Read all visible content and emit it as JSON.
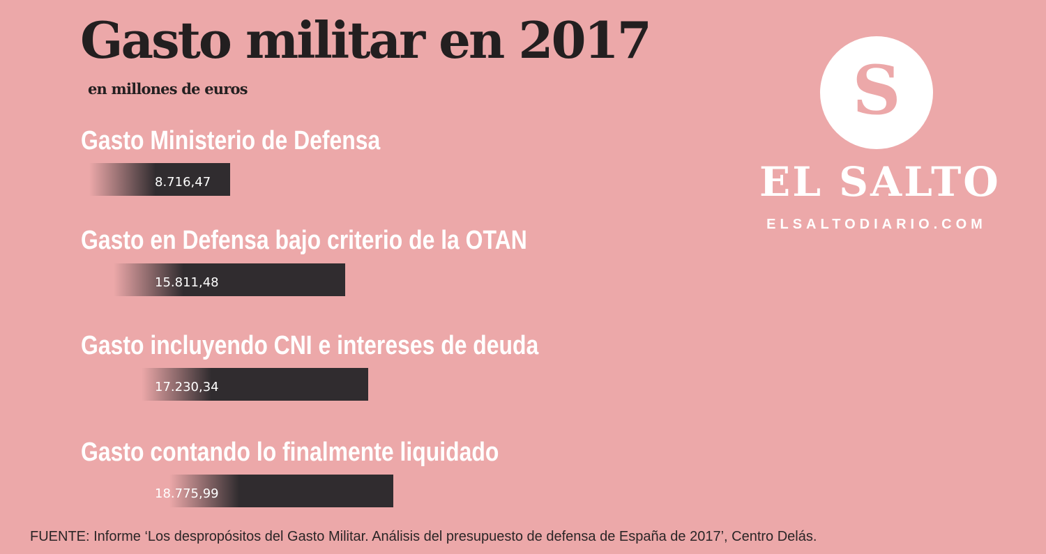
{
  "colors": {
    "background": "#eca8a9",
    "bar": "#302c2f",
    "title_text": "#231f20",
    "label_text": "#ffffff"
  },
  "chart_data": {
    "type": "bar",
    "orientation": "horizontal",
    "title": "Gasto militar en 2017",
    "subtitle": "en millones de euros",
    "categories": [
      "Gasto Ministerio de Defensa",
      "Gasto en Defensa bajo criterio de la OTAN",
      "Gasto incluyendo CNI e intereses de deuda",
      "Gasto contando lo finalmente liquidado"
    ],
    "values": [
      8716.47,
      15811.48,
      17230.34,
      18775.99
    ],
    "value_labels": [
      "8.716,47",
      "15.811,48",
      "17.230,34",
      "18.775,99"
    ],
    "xlim": [
      0,
      20000
    ],
    "grid": false,
    "legend": "none"
  },
  "logo": {
    "letter": "S",
    "name": "EL SALTO",
    "url": "ELSALTODIARIO.COM"
  },
  "source": "FUENTE:  Informe ‘Los despropósitos del Gasto Militar. Análisis del presupuesto de defensa de España de 2017’, Centro Delás."
}
